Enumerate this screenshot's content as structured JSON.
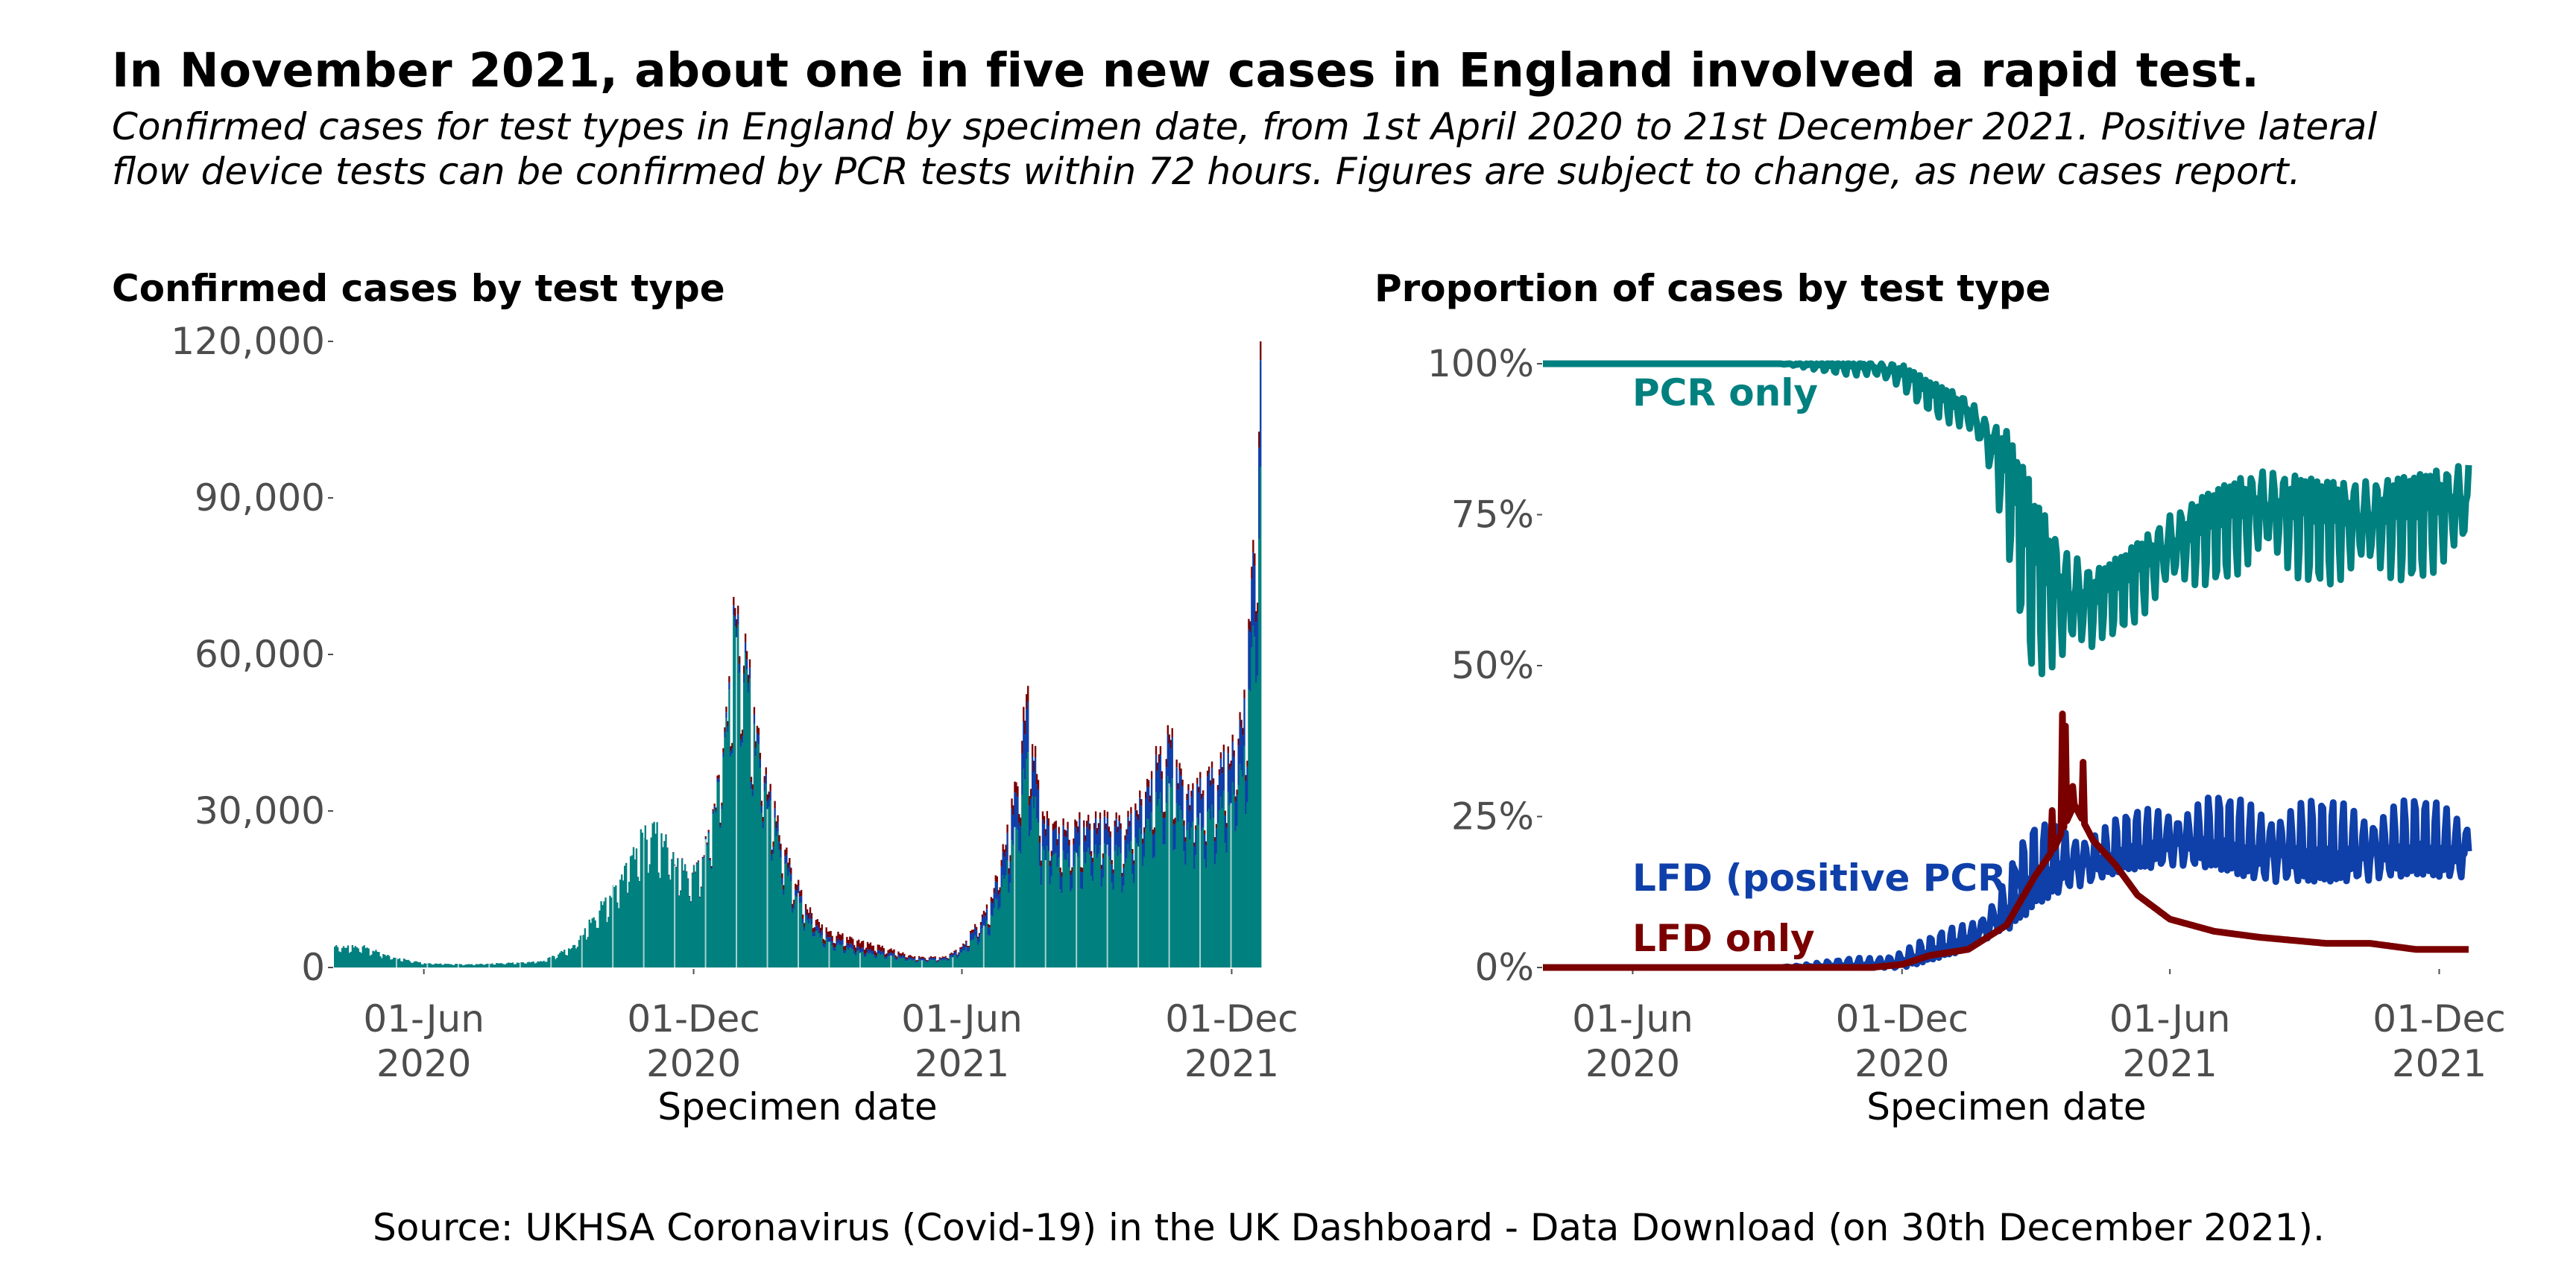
{
  "title": "In November 2021, about one in five new cases in England involved a rapid test.",
  "subtitle_lines": [
    "Confirmed cases for test types in England by specimen date, from 1st April 2020 to 21st December 2021. Positive lateral",
    "flow device tests can be confirmed by PCR tests within 72 hours. Figures are subject to change, as new cases report."
  ],
  "source": "Source: UKHSA Coronavirus (Covid-19) in the UK Dashboard - Data Download (on 30th December 2021).",
  "colors": {
    "pcr": "#00807f",
    "lfd_pcr": "#0f3fa8",
    "lfd": "#7a0000",
    "weekend": "#a9d3d1"
  },
  "chart_data": [
    {
      "type": "bar",
      "title": "Confirmed cases by test type",
      "xlabel": "Specimen date",
      "ylabel": "",
      "x_range": [
        "2020-04-01",
        "2021-12-21"
      ],
      "ylim": [
        0,
        120000
      ],
      "y_ticks": [
        0,
        30000,
        60000,
        90000,
        120000
      ],
      "y_tick_labels": [
        "0",
        "30,000",
        "60,000",
        "90,000",
        "120,000"
      ],
      "x_ticks": [
        "2020-06-01",
        "2020-12-01",
        "2021-06-01",
        "2021-12-01"
      ],
      "x_tick_labels": [
        "01-Jun\n2020",
        "01-Dec\n2020",
        "01-Jun\n2021",
        "01-Dec\n2021"
      ],
      "stacked": true,
      "series_names": [
        "PCR only",
        "LFD (positive PCR)",
        "LFD only"
      ],
      "series_colors": [
        "#00807f",
        "#0f3fa8",
        "#7a0000"
      ],
      "total_cases_knots": [
        [
          "2020-04-01",
          4000
        ],
        [
          "2020-04-20",
          4000
        ],
        [
          "2020-05-10",
          2000
        ],
        [
          "2020-06-01",
          800
        ],
        [
          "2020-07-01",
          600
        ],
        [
          "2020-08-01",
          900
        ],
        [
          "2020-08-20",
          1200
        ],
        [
          "2020-09-10",
          4000
        ],
        [
          "2020-09-25",
          10000
        ],
        [
          "2020-10-10",
          16000
        ],
        [
          "2020-10-20",
          22000
        ],
        [
          "2020-11-01",
          27000
        ],
        [
          "2020-11-10",
          25000
        ],
        [
          "2020-11-20",
          20000
        ],
        [
          "2020-12-01",
          18000
        ],
        [
          "2020-12-10",
          24000
        ],
        [
          "2020-12-20",
          40000
        ],
        [
          "2020-12-29",
          68000
        ],
        [
          "2021-01-04",
          62000
        ],
        [
          "2021-01-15",
          42000
        ],
        [
          "2021-02-01",
          22000
        ],
        [
          "2021-02-15",
          12000
        ],
        [
          "2021-03-01",
          7000
        ],
        [
          "2021-04-01",
          4500
        ],
        [
          "2021-05-01",
          2000
        ],
        [
          "2021-05-20",
          2000
        ],
        [
          "2021-06-01",
          4000
        ],
        [
          "2021-06-20",
          12000
        ],
        [
          "2021-07-05",
          30000
        ],
        [
          "2021-07-16",
          52000
        ],
        [
          "2021-07-25",
          30000
        ],
        [
          "2021-08-10",
          26000
        ],
        [
          "2021-09-01",
          29000
        ],
        [
          "2021-09-20",
          27000
        ],
        [
          "2021-10-01",
          33000
        ],
        [
          "2021-10-20",
          44000
        ],
        [
          "2021-11-01",
          34000
        ],
        [
          "2021-11-20",
          37000
        ],
        [
          "2021-12-05",
          44000
        ],
        [
          "2021-12-12",
          55000
        ],
        [
          "2021-12-16",
          80000
        ],
        [
          "2021-12-21",
          115000
        ]
      ]
    },
    {
      "type": "line",
      "title": "Proportion of cases by test type",
      "xlabel": "Specimen date",
      "ylabel": "",
      "x_range": [
        "2020-04-01",
        "2021-12-21"
      ],
      "ylim": [
        0,
        100
      ],
      "y_ticks": [
        0,
        25,
        50,
        75,
        100
      ],
      "y_tick_labels": [
        "0%",
        "25%",
        "50%",
        "75%",
        "100%"
      ],
      "x_ticks": [
        "2020-06-01",
        "2020-12-01",
        "2021-06-01",
        "2021-12-01"
      ],
      "x_tick_labels": [
        "01-Jun\n2020",
        "01-Dec\n2020",
        "01-Jun\n2021",
        "01-Dec\n2021"
      ],
      "series": [
        {
          "name": "PCR only",
          "color": "#00807f",
          "knots": [
            [
              "2020-04-01",
              100
            ],
            [
              "2020-11-10",
              100
            ],
            [
              "2020-12-01",
              99
            ],
            [
              "2020-12-20",
              96
            ],
            [
              "2021-01-15",
              93
            ],
            [
              "2021-02-10",
              85
            ],
            [
              "2021-03-01",
              72
            ],
            [
              "2021-03-20",
              65
            ],
            [
              "2021-04-10",
              63
            ],
            [
              "2021-05-01",
              66
            ],
            [
              "2021-06-01",
              72
            ],
            [
              "2021-07-01",
              76
            ],
            [
              "2021-08-01",
              79
            ],
            [
              "2021-09-15",
              77
            ],
            [
              "2021-10-15",
              77
            ],
            [
              "2021-11-15",
              78
            ],
            [
              "2021-12-21",
              80
            ]
          ],
          "weekly_dip_days": [
            5,
            6
          ],
          "weekly_dip_depth": [
            [
              0,
              0
            ],
            [
              160,
              0
            ],
            [
              300,
              4
            ],
            [
              330,
              18
            ],
            [
              380,
              7
            ],
            [
              500,
              10
            ],
            [
              630,
              10
            ]
          ]
        },
        {
          "name": "LFD (positive PCR)",
          "color": "#0f3fa8",
          "knots": [
            [
              "2020-04-01",
              0
            ],
            [
              "2020-11-10",
              0
            ],
            [
              "2020-12-01",
              0.5
            ],
            [
              "2020-12-20",
              2
            ],
            [
              "2021-01-15",
              4
            ],
            [
              "2021-02-10",
              8
            ],
            [
              "2021-03-01",
              13
            ],
            [
              "2021-03-20",
              15
            ],
            [
              "2021-04-10",
              16
            ],
            [
              "2021-05-01",
              18
            ],
            [
              "2021-06-01",
              19
            ],
            [
              "2021-07-01",
              19
            ],
            [
              "2021-08-01",
              17
            ],
            [
              "2021-09-15",
              17
            ],
            [
              "2021-10-15",
              17
            ],
            [
              "2021-11-15",
              18
            ],
            [
              "2021-12-21",
              17
            ]
          ],
          "weekly_dip_days": [
            0,
            1
          ],
          "weekly_dip_depth": [
            [
              0,
              0
            ],
            [
              160,
              0
            ],
            [
              300,
              3
            ],
            [
              330,
              8
            ],
            [
              380,
              5
            ],
            [
              500,
              8
            ],
            [
              630,
              7
            ]
          ]
        },
        {
          "name": "LFD only",
          "color": "#7a0000",
          "knots": [
            [
              "2020-04-01",
              0
            ],
            [
              "2020-11-10",
              0
            ],
            [
              "2020-12-01",
              0.5
            ],
            [
              "2020-12-20",
              2
            ],
            [
              "2021-01-15",
              3
            ],
            [
              "2021-02-10",
              7
            ],
            [
              "2021-03-01",
              15
            ],
            [
              "2021-03-15",
              20
            ],
            [
              "2021-03-28",
              27
            ],
            [
              "2021-04-10",
              21
            ],
            [
              "2021-04-25",
              17
            ],
            [
              "2021-05-10",
              12
            ],
            [
              "2021-06-01",
              8
            ],
            [
              "2021-07-01",
              6
            ],
            [
              "2021-08-01",
              5
            ],
            [
              "2021-09-15",
              4
            ],
            [
              "2021-10-15",
              4
            ],
            [
              "2021-11-15",
              3
            ],
            [
              "2021-12-21",
              3
            ]
          ],
          "spikes": [
            [
              "2021-03-20",
              42
            ],
            [
              "2021-03-22",
              40
            ],
            [
              "2021-03-27",
              30
            ],
            [
              "2021-04-03",
              34
            ],
            [
              "2021-03-13",
              26
            ]
          ]
        }
      ],
      "annotations": [
        {
          "text": "PCR only",
          "color": "#00807f"
        },
        {
          "text": "LFD (positive PCR)",
          "color": "#0f3fa8"
        },
        {
          "text": "LFD only",
          "color": "#7a0000"
        }
      ]
    }
  ]
}
